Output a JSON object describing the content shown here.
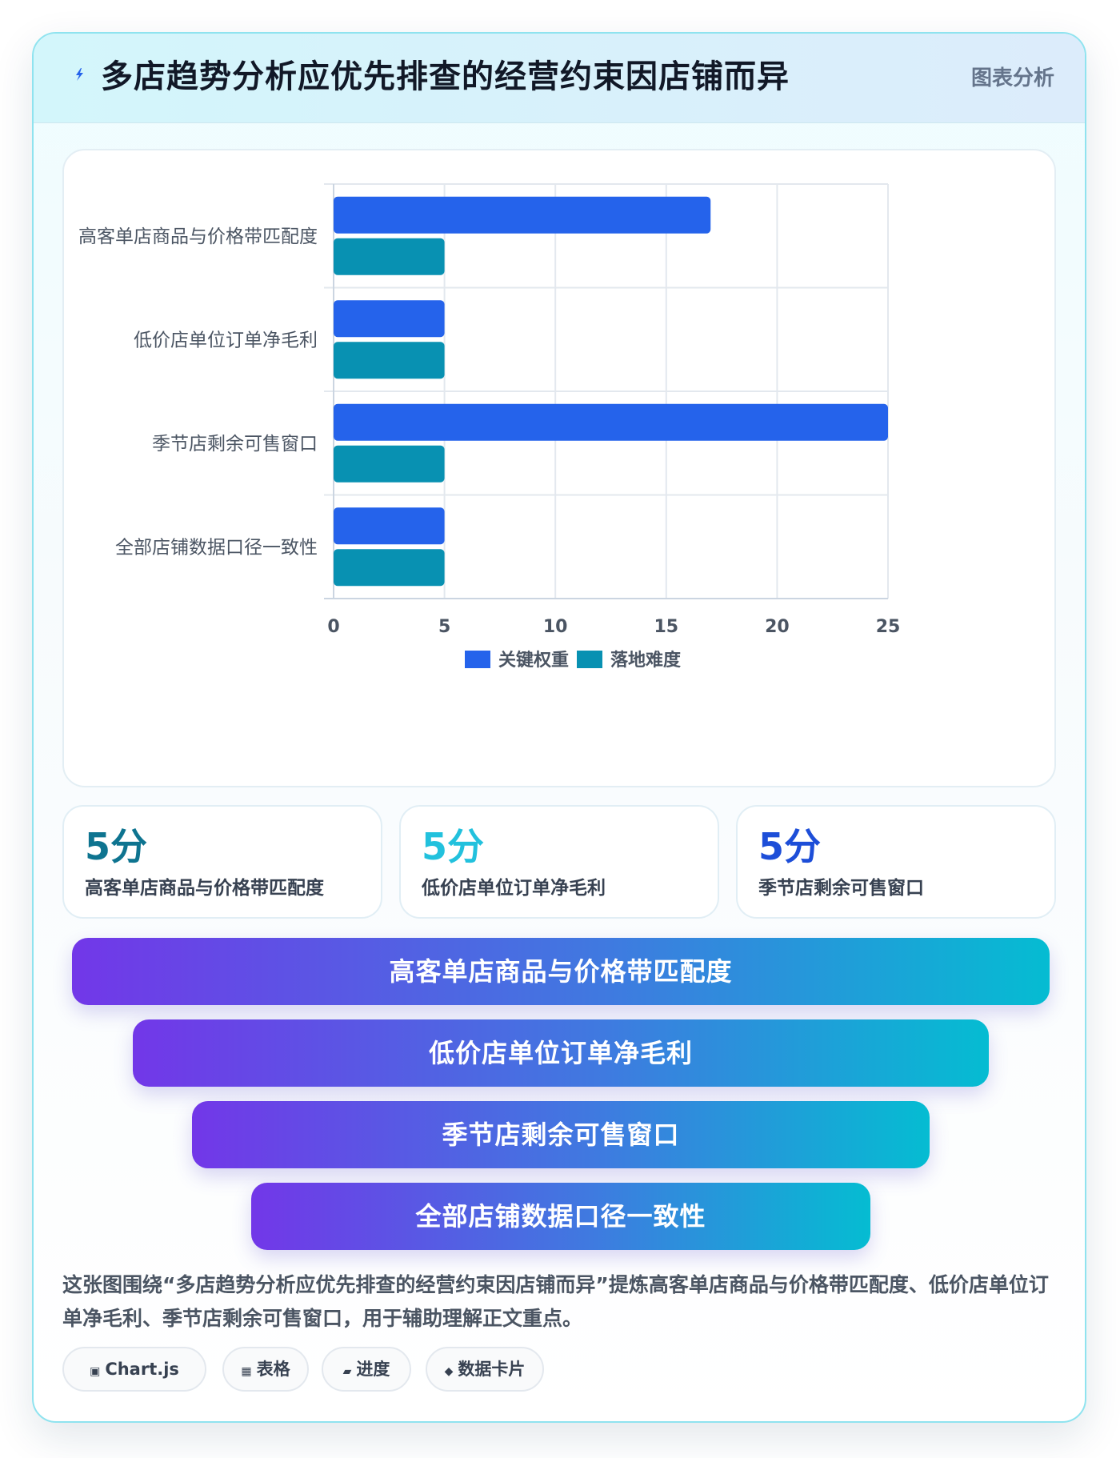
{
  "header": {
    "title": "多店趋势分析应优先排查的经营约束因店铺而异",
    "tag": "图表分析"
  },
  "colors": {
    "series_primary": "#2563eb",
    "series_secondary": "#0891b2",
    "accent_cyan": "#22c1dd"
  },
  "chart_data": {
    "type": "bar",
    "orientation": "horizontal",
    "categories": [
      "高客单店商品与价格带匹配度",
      "低价店单位订单净毛利",
      "季节店剩余可售窗口",
      "全部店铺数据口径一致性"
    ],
    "series": [
      {
        "name": "关键权重",
        "values": [
          17,
          5,
          25,
          5
        ]
      },
      {
        "name": "落地难度",
        "values": [
          5,
          5,
          5,
          5
        ]
      }
    ],
    "xlim": [
      0,
      25
    ],
    "xticks": [
      0,
      5,
      10,
      15,
      20,
      25
    ],
    "grid": true,
    "legend": "bottom"
  },
  "stats": [
    {
      "value": "5分",
      "label": "高客单店商品与价格带匹配度",
      "color": "#0e7490"
    },
    {
      "value": "5分",
      "label": "低价店单位订单净毛利",
      "color": "#22c1dd"
    },
    {
      "value": "5分",
      "label": "季节店剩余可售窗口",
      "color": "#1d4ed8"
    }
  ],
  "funnel": [
    "高客单店商品与价格带匹配度",
    "低价店单位订单净毛利",
    "季节店剩余可售窗口",
    "全部店铺数据口径一致性"
  ],
  "summary": "这张图围绕“多店趋势分析应优先排查的经营约束因店铺而异”提炼高客单店商品与价格带匹配度、低价店单位订单净毛利、季节店剩余可售窗口，用于辅助理解正文重点。",
  "tags": [
    {
      "icon": "▣",
      "icon_name": "chip-icon",
      "label": "Chart.js"
    },
    {
      "icon": "▦",
      "icon_name": "table-icon",
      "label": "表格"
    },
    {
      "icon": "▰",
      "icon_name": "progress-icon",
      "label": "进度"
    },
    {
      "icon": "◆",
      "icon_name": "diamond-icon",
      "label": "数据卡片"
    }
  ]
}
